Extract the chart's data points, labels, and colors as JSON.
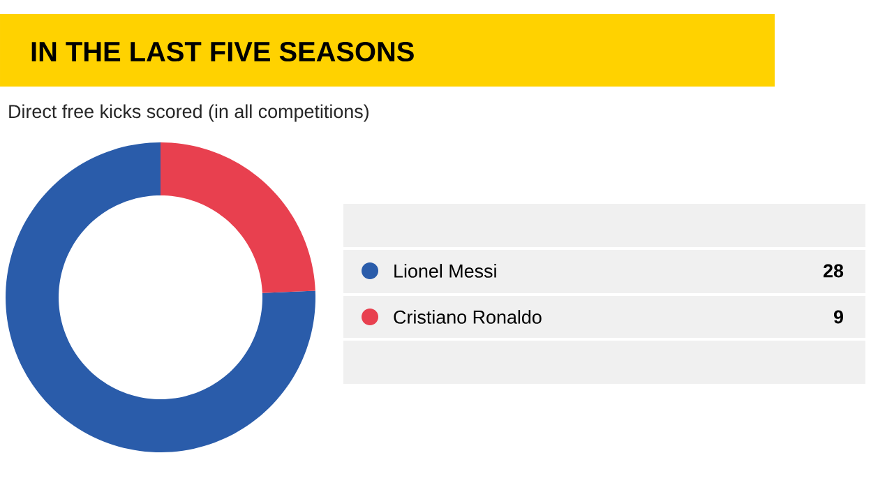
{
  "chart_data": {
    "type": "donut",
    "title": "IN THE LAST FIVE SEASONS",
    "subtitle": "Direct free kicks scored (in all competitions)",
    "categories": [
      "Lionel Messi",
      "Cristiano Ronaldo"
    ],
    "values": [
      28,
      9
    ],
    "colors": [
      "#2a5caa",
      "#e8404f"
    ],
    "data_labels": true,
    "legend": "right"
  }
}
